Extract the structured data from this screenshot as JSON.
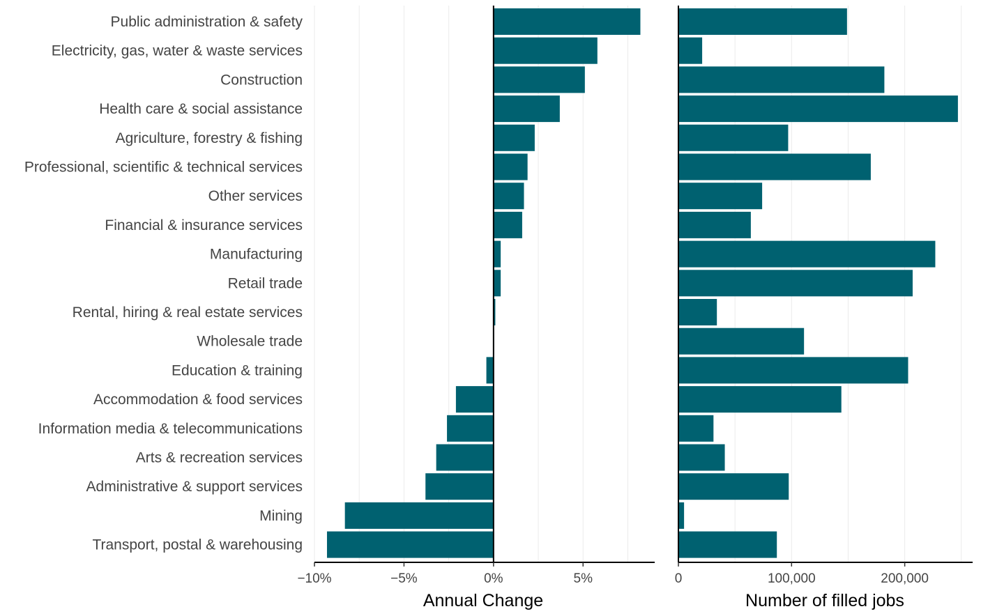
{
  "chart_data": [
    {
      "type": "bar",
      "orientation": "horizontal",
      "xlabel": "Annual Change",
      "color": "#006170",
      "xlim": [
        -0.1,
        0.09
      ],
      "xticks": [
        -0.1,
        -0.05,
        0,
        0.05
      ],
      "xtick_labels": [
        "−10%",
        "−5%",
        "0%",
        "5%"
      ],
      "grid": "vertical",
      "categories": [
        "Public administration & safety",
        "Electricity, gas, water & waste services",
        "Construction",
        "Health care & social assistance",
        "Agriculture, forestry & fishing",
        "Professional, scientific & technical services",
        "Other services",
        "Financial & insurance services",
        "Manufacturing",
        "Retail trade",
        "Rental, hiring & real estate services",
        "Wholesale trade",
        "Education & training",
        "Accommodation & food services",
        "Information media & telecommunications",
        "Arts & recreation services",
        "Administrative & support services",
        "Mining",
        "Transport, postal & warehousing"
      ],
      "values": [
        0.082,
        0.058,
        0.051,
        0.037,
        0.023,
        0.019,
        0.017,
        0.016,
        0.004,
        0.004,
        0.001,
        0.0003,
        -0.004,
        -0.021,
        -0.026,
        -0.032,
        -0.038,
        -0.083,
        -0.093
      ]
    },
    {
      "type": "bar",
      "orientation": "horizontal",
      "xlabel": "Number of filled jobs",
      "color": "#006170",
      "xlim": [
        0,
        260000
      ],
      "xticks": [
        0,
        100000,
        200000
      ],
      "xtick_labels": [
        "0",
        "100,000",
        "200,000"
      ],
      "grid": "vertical",
      "values": [
        149000,
        21000,
        182000,
        247000,
        97000,
        170000,
        74000,
        64000,
        227000,
        207000,
        34000,
        111000,
        203000,
        144000,
        31000,
        41000,
        97500,
        5000,
        87000
      ]
    }
  ]
}
